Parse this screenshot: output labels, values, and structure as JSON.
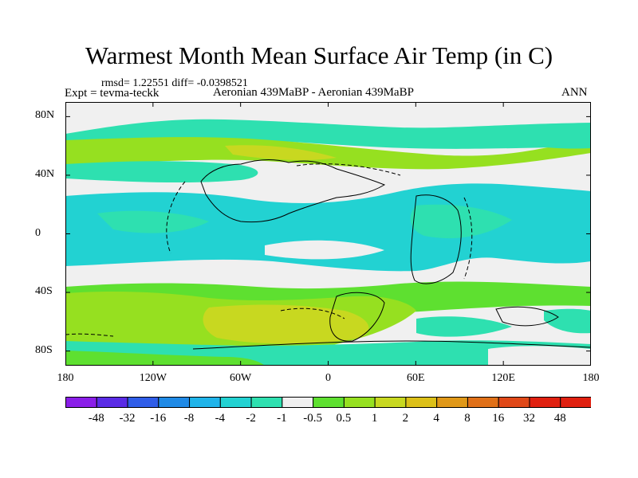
{
  "title": "Warmest Month Mean Surface Air Temp (in C)",
  "stats": "rmsd= 1.22551 diff= -0.0398521",
  "expt": "Expt = tevma-teckk",
  "subtitle": "Aeronian 439MaBP - Aeronian 439MaBP",
  "period": "ANN",
  "lat_labels": [
    {
      "text": "80N",
      "lat": 80
    },
    {
      "text": "40N",
      "lat": 40
    },
    {
      "text": "0",
      "lat": 0
    },
    {
      "text": "40S",
      "lat": -40
    },
    {
      "text": "80S",
      "lat": -80
    }
  ],
  "lon_labels": [
    {
      "text": "180",
      "lon": -180
    },
    {
      "text": "120W",
      "lon": -120
    },
    {
      "text": "60W",
      "lon": -60
    },
    {
      "text": "0",
      "lon": 0
    },
    {
      "text": "60E",
      "lon": 60
    },
    {
      "text": "120E",
      "lon": 120
    },
    {
      "text": "180",
      "lon": 180
    }
  ],
  "colorbar": {
    "colors": [
      "#8a1ee8",
      "#5a2be6",
      "#2f5de8",
      "#1f8ae6",
      "#1fb4ea",
      "#22d2d2",
      "#2ee0b0",
      "#f0f0f0",
      "#5ee030",
      "#96e020",
      "#c8d820",
      "#dcc018",
      "#e09818",
      "#e07018",
      "#e04818",
      "#e02010"
    ],
    "labels": [
      "-48",
      "-32",
      "-16",
      "-8",
      "-4",
      "-2",
      "-1",
      "-0.5",
      "0.5",
      "1",
      "2",
      "4",
      "8",
      "16",
      "32",
      "48"
    ]
  },
  "colors": {
    "cyan": "#2ee0b0",
    "light_cyan": "#22d2d2",
    "white": "#f0f0f0",
    "green": "#5ee030",
    "lime": "#96e020",
    "olive": "#c8d820"
  }
}
